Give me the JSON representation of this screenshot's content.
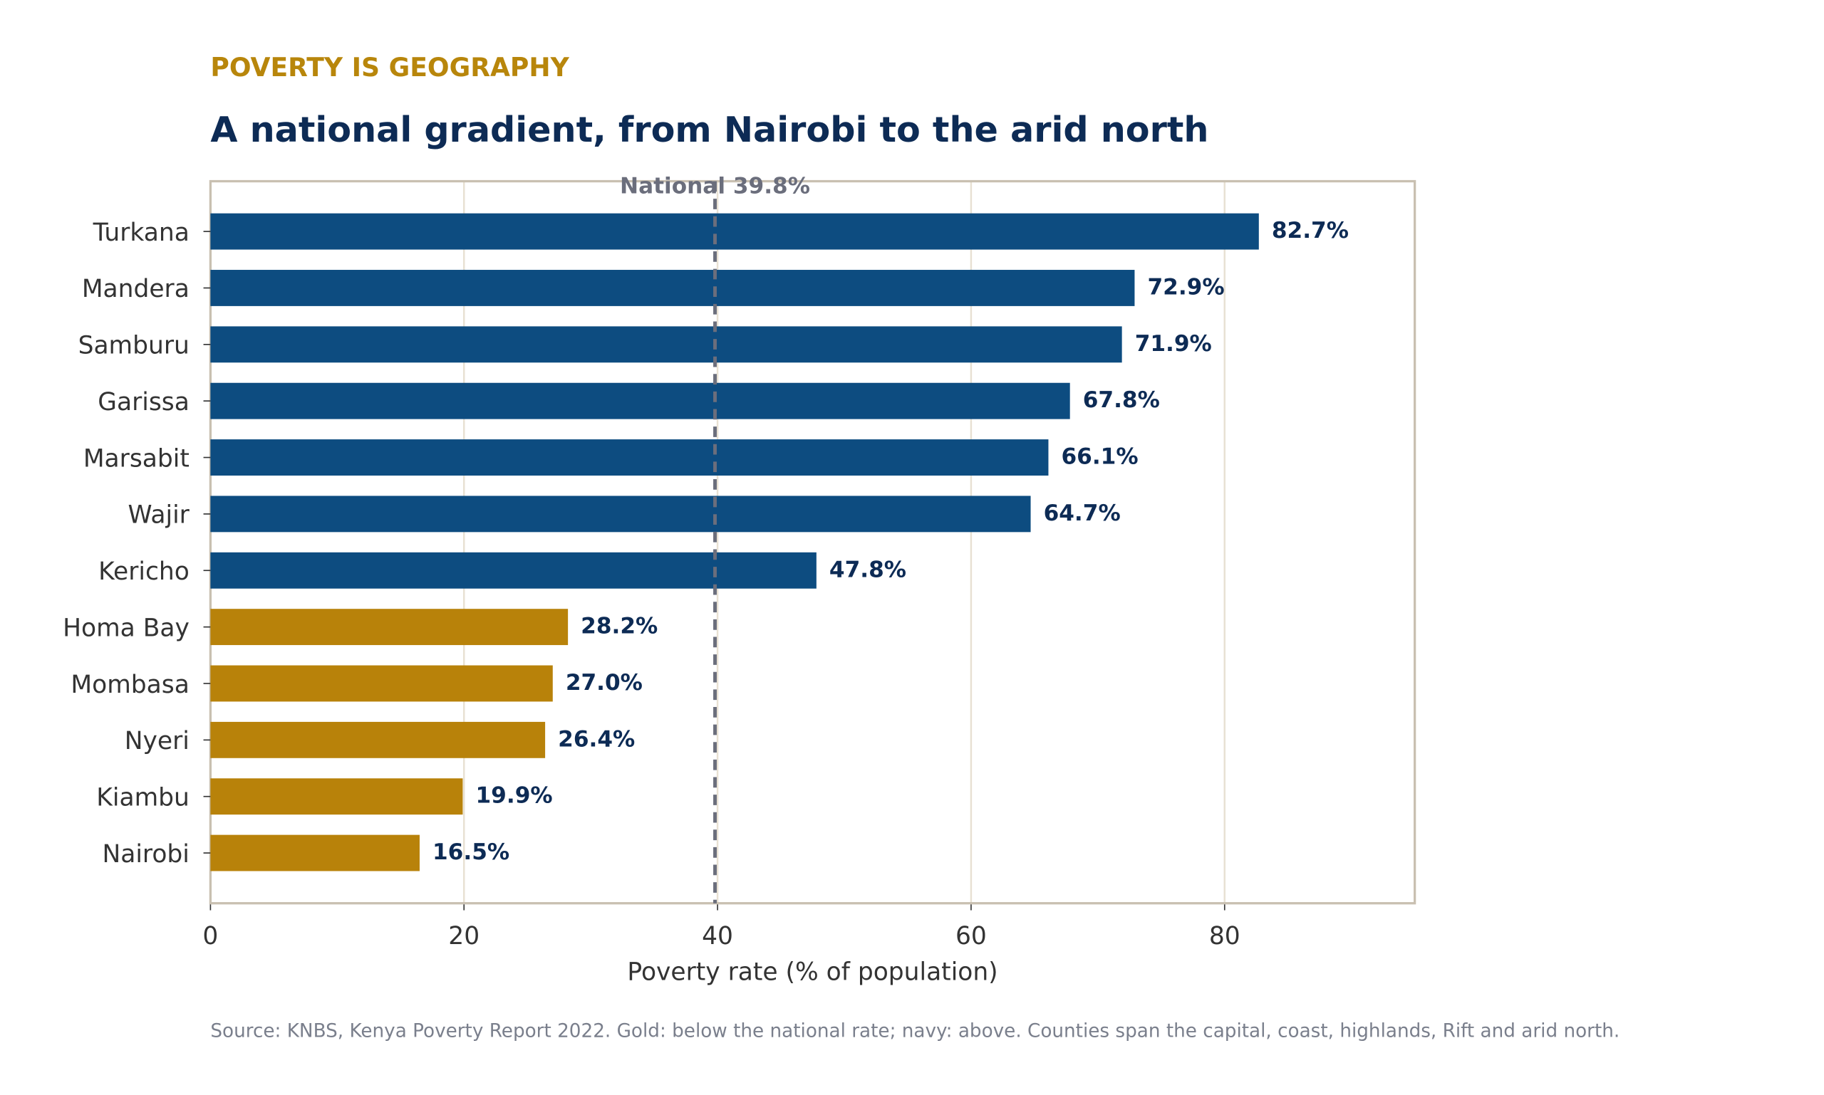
{
  "chart_data": {
    "type": "barh",
    "kicker": "POVERTY IS GEOGRAPHY",
    "title": "A national gradient, from Nairobi to the arid north",
    "categories": [
      "Turkana",
      "Mandera",
      "Samburu",
      "Garissa",
      "Marsabit",
      "Wajir",
      "Kericho",
      "Homa Bay",
      "Mombasa",
      "Nyeri",
      "Kiambu",
      "Nairobi"
    ],
    "values": [
      82.7,
      72.9,
      71.9,
      67.8,
      66.1,
      64.7,
      47.8,
      28.2,
      27.0,
      26.4,
      19.9,
      16.5
    ],
    "value_labels": [
      "82.7%",
      "72.9%",
      "71.9%",
      "67.8%",
      "66.1%",
      "64.7%",
      "47.8%",
      "28.2%",
      "27.0%",
      "26.4%",
      "19.9%",
      "16.5%"
    ],
    "colors": [
      "#0d4c80",
      "#0d4c80",
      "#0d4c80",
      "#0d4c80",
      "#0d4c80",
      "#0d4c80",
      "#0d4c80",
      "#b8820a",
      "#b8820a",
      "#b8820a",
      "#b8820a",
      "#b8820a"
    ],
    "xlim": [
      0,
      95
    ],
    "xticks": [
      0,
      20,
      40,
      60,
      80
    ],
    "xlabel": "Poverty rate (% of population)",
    "grid": true,
    "reference_line": {
      "value": 39.8,
      "label": "National 39.8%"
    },
    "source": "Source: KNBS, Kenya Poverty Report 2022. Gold: below the national rate; navy: above. Counties span the capital, coast, highlands, Rift and arid north."
  }
}
